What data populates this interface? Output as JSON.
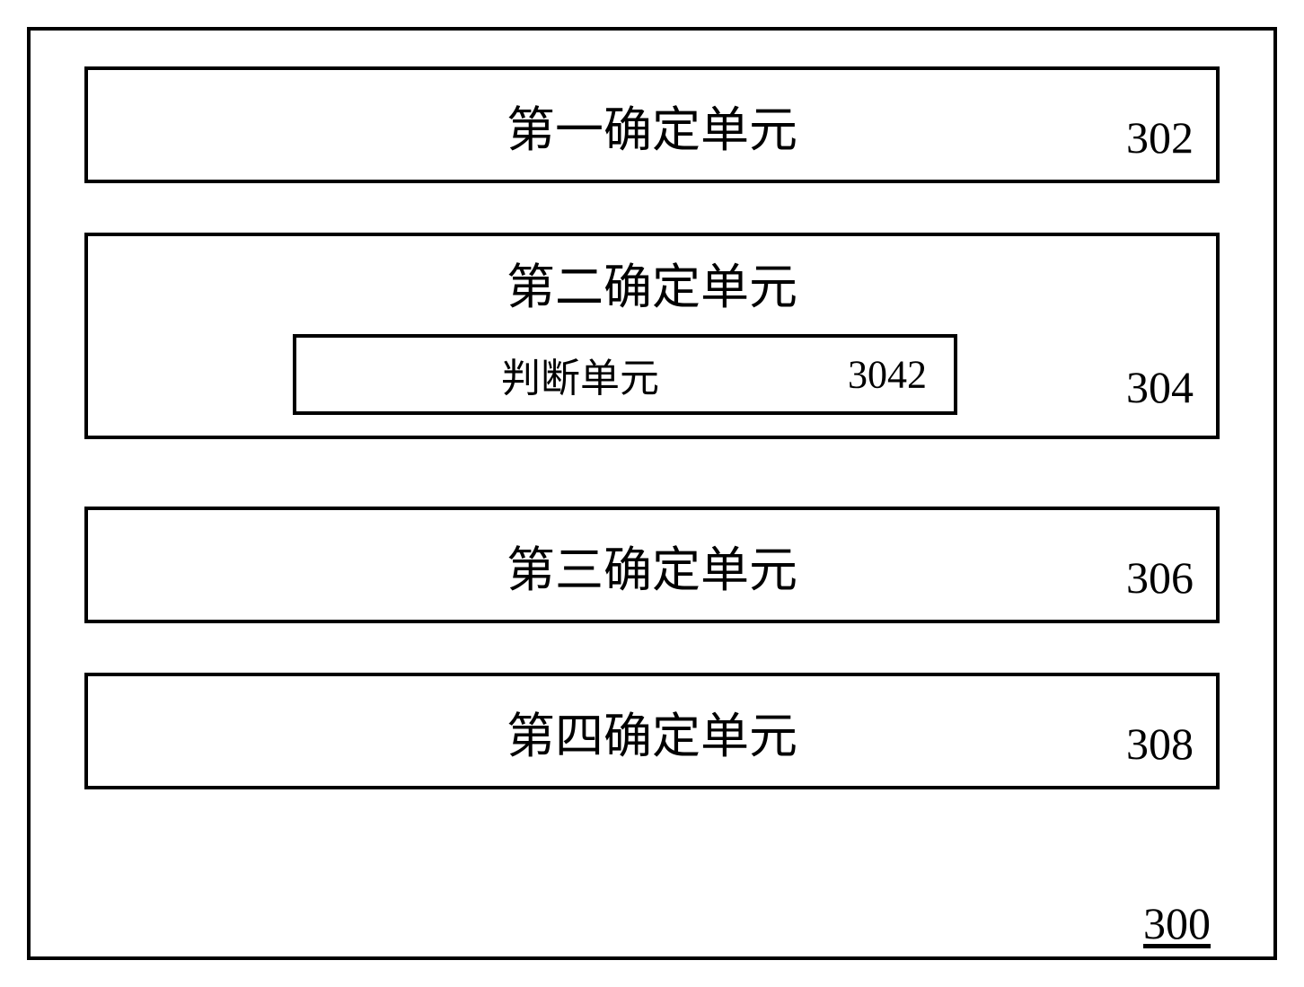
{
  "diagram": {
    "type": "block-diagram",
    "container_number": "300",
    "border_color": "#000000",
    "border_width": 4,
    "background_color": "#ffffff",
    "text_color": "#000000",
    "title_fontsize": 54,
    "number_fontsize": 50,
    "inner_fontsize": 44,
    "units": [
      {
        "label": "第一确定单元",
        "number": "302",
        "nested": null
      },
      {
        "label": "第二确定单元",
        "number": "304",
        "nested": {
          "label": "判断单元",
          "number": "3042"
        }
      },
      {
        "label": "第三确定单元",
        "number": "306",
        "nested": null
      },
      {
        "label": "第四确定单元",
        "number": "308",
        "nested": null
      }
    ]
  }
}
